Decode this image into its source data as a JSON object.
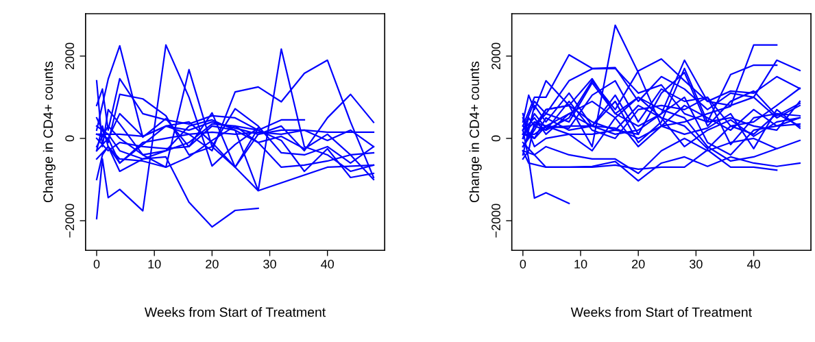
{
  "chart_data": [
    {
      "type": "line",
      "xlabel": "Weeks from Start of Treatment",
      "ylabel": "Change in CD4+ counts",
      "xlim": [
        -1.92,
        49.92
      ],
      "ylim": [
        -2720,
        3030
      ],
      "xticks": [
        0,
        10,
        20,
        30,
        40
      ],
      "yticks": [
        {
          "value": -2000,
          "label": "−2000"
        },
        0,
        2000
      ],
      "grid": false,
      "legend": false,
      "line_style": "solid",
      "marker": "none",
      "series": [
        {
          "color": "#0000ff",
          "x": [
            0,
            1,
            2,
            4,
            8,
            12,
            16,
            20,
            24,
            28
          ],
          "values": [
            -1950,
            -500,
            -1440,
            -1240,
            -1760,
            2270,
            1000,
            -670,
            -150,
            250
          ]
        },
        {
          "color": "#0000ff",
          "x": [
            0,
            2,
            4,
            8,
            12,
            16,
            20,
            24,
            28
          ],
          "values": [
            200,
            1440,
            2250,
            30,
            480,
            -200,
            620,
            -700,
            250
          ]
        },
        {
          "color": "#0000ff",
          "x": [
            0,
            2,
            4,
            8,
            12,
            16,
            20,
            24,
            28
          ],
          "values": [
            300,
            100,
            -300,
            -500,
            -450,
            -1550,
            -2150,
            -1750,
            -1700
          ]
        },
        {
          "color": "#0000ff",
          "x": [
            0,
            2,
            4,
            8,
            12,
            16,
            20,
            24,
            28,
            32,
            36,
            40,
            44,
            48
          ],
          "values": [
            -300,
            0,
            -600,
            -150,
            300,
            400,
            -100,
            -700,
            -1270,
            2170,
            -200,
            -400,
            -800,
            -650
          ]
        },
        {
          "color": "#0000ff",
          "x": [
            0,
            2,
            4,
            8,
            12,
            16,
            20,
            24,
            28,
            32,
            36,
            40,
            44,
            48
          ],
          "values": [
            100,
            0,
            600,
            50,
            300,
            100,
            -300,
            1130,
            1250,
            890,
            1580,
            1900,
            400,
            -950
          ]
        },
        {
          "color": "#0000ff",
          "x": [
            0,
            2,
            4,
            8,
            12,
            16,
            20,
            24,
            28,
            32,
            36,
            40,
            44,
            48
          ],
          "values": [
            -200,
            300,
            0,
            -400,
            -700,
            1670,
            -200,
            -700,
            100,
            300,
            -300,
            500,
            1070,
            390
          ]
        },
        {
          "color": "#0000ff",
          "x": [
            0,
            2,
            4,
            8,
            12,
            16,
            20,
            24,
            28,
            40,
            48
          ],
          "values": [
            0,
            -300,
            -100,
            -200,
            -250,
            -200,
            300,
            200,
            -1270,
            -700,
            -650
          ]
        },
        {
          "color": "#0000ff",
          "x": [
            0,
            4,
            8,
            12,
            16,
            20,
            24,
            28,
            32,
            36,
            40,
            44,
            48
          ],
          "values": [
            100,
            100,
            50,
            300,
            200,
            400,
            250,
            100,
            200,
            200,
            150,
            150,
            150
          ]
        },
        {
          "color": "#0000ff",
          "x": [
            0,
            1,
            2,
            4,
            8,
            12,
            16,
            20,
            24,
            28,
            32,
            36,
            40,
            44,
            48
          ],
          "values": [
            1400,
            -200,
            700,
            350,
            -400,
            -300,
            300,
            450,
            200,
            -100,
            -700,
            -650,
            -550,
            -400,
            -350
          ]
        },
        {
          "color": "#0000ff",
          "x": [
            0,
            1,
            2,
            4,
            8,
            12,
            16,
            20,
            24,
            28,
            32,
            36
          ],
          "values": [
            800,
            1200,
            200,
            1450,
            600,
            450,
            350,
            550,
            500,
            200,
            450,
            450
          ]
        },
        {
          "color": "#0000ff",
          "x": [
            0,
            1,
            2,
            4,
            8,
            12,
            16,
            20,
            24,
            28,
            32,
            36,
            40,
            44,
            48
          ],
          "values": [
            -1000,
            -400,
            -200,
            -500,
            -550,
            -700,
            -450,
            -50,
            300,
            200,
            -50,
            -800,
            -250,
            -950,
            -850
          ]
        },
        {
          "color": "#0000ff",
          "x": [
            0,
            2,
            4,
            8,
            12,
            16,
            20,
            24,
            28,
            32,
            36,
            40,
            44,
            48
          ],
          "values": [
            500,
            -100,
            1070,
            960,
            550,
            -400,
            -200,
            720,
            300,
            -350,
            -400,
            -200,
            -600,
            -200
          ]
        },
        {
          "color": "#0000ff",
          "x": [
            0,
            1,
            2,
            4,
            8,
            12,
            16,
            20,
            24,
            28,
            32,
            36,
            40,
            44,
            48
          ],
          "values": [
            -300,
            300,
            -200,
            -800,
            -500,
            -300,
            -100,
            350,
            300,
            -100,
            50,
            -250,
            100,
            -400,
            -1000
          ]
        },
        {
          "color": "#0000ff",
          "x": [
            0,
            2,
            4,
            8,
            12,
            16,
            20,
            24,
            28,
            32,
            36,
            40,
            44,
            48
          ],
          "values": [
            -500,
            -200,
            -600,
            -100,
            0,
            100,
            150,
            100,
            150,
            100,
            200,
            -50,
            200,
            -200
          ]
        }
      ]
    },
    {
      "type": "line",
      "xlabel": "Weeks from Start of Treatment",
      "ylabel": "Change in CD4+ counts",
      "xlim": [
        -1.92,
        49.92
      ],
      "ylim": [
        -2720,
        3030
      ],
      "xticks": [
        0,
        10,
        20,
        30,
        40
      ],
      "yticks": [
        {
          "value": -2000,
          "label": "−2000"
        },
        0,
        2000
      ],
      "grid": false,
      "legend": false,
      "line_style": "solid",
      "marker": "none",
      "series": [
        {
          "color": "#0000ff",
          "x": [
            0,
            1,
            2,
            4,
            8,
            12,
            16,
            20,
            24,
            28,
            32,
            36,
            40,
            44,
            48
          ],
          "values": [
            0,
            500,
            300,
            700,
            800,
            -200,
            2750,
            1600,
            300,
            800,
            500,
            200,
            700,
            300,
            500
          ]
        },
        {
          "color": "#0000ff",
          "x": [
            0,
            2,
            4,
            8,
            12,
            16,
            20,
            24,
            28,
            32,
            36,
            40,
            44
          ],
          "values": [
            100,
            400,
            300,
            600,
            900,
            500,
            -200,
            300,
            400,
            600,
            780,
            2270,
            2270
          ]
        },
        {
          "color": "#0000ff",
          "x": [
            0,
            2,
            4,
            8,
            12,
            16,
            20,
            24,
            28,
            32,
            36,
            40,
            44
          ],
          "values": [
            200,
            900,
            600,
            1400,
            1690,
            1700,
            1100,
            1300,
            600,
            400,
            1550,
            1780,
            1780
          ]
        },
        {
          "color": "#0000ff",
          "x": [
            0,
            2,
            4,
            8,
            12,
            16,
            20,
            24,
            28,
            32,
            36,
            40,
            44,
            48
          ],
          "values": [
            300,
            1000,
            1000,
            2030,
            1700,
            1720,
            900,
            1500,
            1200,
            700,
            1100,
            1000,
            1900,
            1650
          ]
        },
        {
          "color": "#0000ff",
          "x": [
            0,
            2,
            4,
            8,
            12,
            16,
            20,
            24,
            28,
            32,
            36,
            40,
            44,
            48
          ],
          "values": [
            -200,
            300,
            200,
            500,
            1400,
            700,
            1640,
            1930,
            1400,
            900,
            1150,
            1100,
            1500,
            1210
          ]
        },
        {
          "color": "#0000ff",
          "x": [
            0,
            1,
            2,
            4,
            8
          ],
          "values": [
            200,
            -500,
            -1450,
            -1320,
            -1580
          ]
        },
        {
          "color": "#0000ff",
          "x": [
            0,
            1,
            4,
            8,
            12,
            16,
            20,
            24,
            28,
            32,
            36,
            40,
            44,
            48
          ],
          "values": [
            -300,
            -600,
            -700,
            -700,
            -680,
            -560,
            -1030,
            -600,
            -450,
            -680,
            -450,
            -600,
            -680,
            -600
          ]
        },
        {
          "color": "#0000ff",
          "x": [
            0,
            4,
            8,
            12,
            16,
            20,
            24,
            28,
            32,
            36,
            40,
            44
          ],
          "values": [
            -100,
            -700,
            -700,
            -700,
            -650,
            -750,
            -700,
            -700,
            -280,
            -700,
            -700,
            -770
          ]
        },
        {
          "color": "#0000ff",
          "x": [
            0,
            2,
            4,
            8,
            12,
            16,
            20,
            24,
            28,
            32,
            36,
            40,
            44,
            48
          ],
          "values": [
            -300,
            -400,
            -200,
            -400,
            -500,
            -500,
            -850,
            -300,
            0,
            -300,
            -100,
            0,
            -250,
            -50
          ]
        },
        {
          "color": "#0000ff",
          "x": [
            0,
            1,
            2,
            4,
            8,
            12,
            16,
            20,
            24,
            28,
            32,
            36,
            40,
            44,
            48
          ],
          "values": [
            400,
            1050,
            700,
            1400,
            800,
            1450,
            600,
            300,
            600,
            1900,
            900,
            800,
            1000,
            500,
            800
          ]
        },
        {
          "color": "#0000ff",
          "x": [
            0,
            1,
            2,
            4,
            8,
            12,
            16,
            20,
            24,
            28,
            32,
            36,
            40,
            44,
            48
          ],
          "values": [
            -400,
            200,
            800,
            400,
            1100,
            300,
            1050,
            100,
            1100,
            1600,
            300,
            900,
            1150,
            550,
            850
          ]
        },
        {
          "color": "#0000ff",
          "x": [
            0,
            1,
            2,
            4,
            8,
            12,
            16,
            20,
            24,
            28,
            32,
            36,
            40,
            44,
            48
          ],
          "values": [
            600,
            0,
            300,
            600,
            400,
            1350,
            600,
            1000,
            500,
            300,
            -250,
            300,
            400,
            800,
            1220
          ]
        },
        {
          "color": "#0000ff",
          "x": [
            0,
            2,
            4,
            8,
            12,
            16,
            20,
            24,
            28,
            32,
            36,
            40,
            44,
            48
          ],
          "values": [
            100,
            100,
            300,
            250,
            1050,
            1400,
            400,
            1200,
            900,
            1000,
            300,
            100,
            600,
            300
          ]
        },
        {
          "color": "#0000ff",
          "x": [
            0,
            2,
            4,
            8,
            12,
            16,
            20,
            24,
            28,
            32,
            36,
            40,
            44,
            48
          ],
          "values": [
            0,
            600,
            250,
            300,
            300,
            100,
            200,
            600,
            1000,
            -100,
            -400,
            200,
            300,
            350
          ]
        },
        {
          "color": "#0000ff",
          "x": [
            0,
            1,
            2,
            4,
            8,
            12,
            16,
            20,
            24,
            28,
            32,
            36,
            40,
            44,
            48
          ],
          "values": [
            -500,
            -300,
            400,
            200,
            900,
            200,
            0,
            700,
            800,
            700,
            1000,
            -150,
            500,
            600,
            550
          ]
        },
        {
          "color": "#0000ff",
          "x": [
            0,
            2,
            4,
            8,
            12,
            16,
            20,
            24,
            28,
            32,
            36,
            40,
            44,
            48
          ],
          "values": [
            200,
            500,
            100,
            600,
            300,
            900,
            -100,
            400,
            1700,
            400,
            500,
            300,
            200,
            900
          ]
        },
        {
          "color": "#0000ff",
          "x": [
            0,
            2,
            4,
            8,
            12,
            16,
            20,
            24,
            28,
            32,
            36,
            40,
            44,
            48
          ],
          "values": [
            300,
            0,
            500,
            200,
            300,
            250,
            0,
            300,
            100,
            250,
            600,
            -250,
            700,
            250
          ]
        },
        {
          "color": "#0000ff",
          "x": [
            0,
            2,
            4,
            8,
            12,
            16,
            20,
            24,
            28,
            32,
            36,
            40,
            44,
            48
          ],
          "values": [
            -200,
            200,
            700,
            800,
            400,
            200,
            800,
            500,
            -200,
            200,
            450,
            50,
            400,
            500
          ]
        },
        {
          "color": "#0000ff",
          "x": [
            0,
            2,
            4,
            8,
            12,
            16,
            20
          ],
          "values": [
            100,
            0,
            300,
            100,
            100,
            200,
            100
          ]
        },
        {
          "color": "#0000ff",
          "x": [
            0,
            2,
            4,
            8,
            12,
            16,
            20,
            24,
            28,
            32,
            36,
            40,
            44
          ],
          "values": [
            500,
            -200,
            0,
            100,
            -300,
            500,
            1000,
            700,
            500,
            -200,
            -550,
            -450,
            -250
          ]
        }
      ]
    }
  ]
}
